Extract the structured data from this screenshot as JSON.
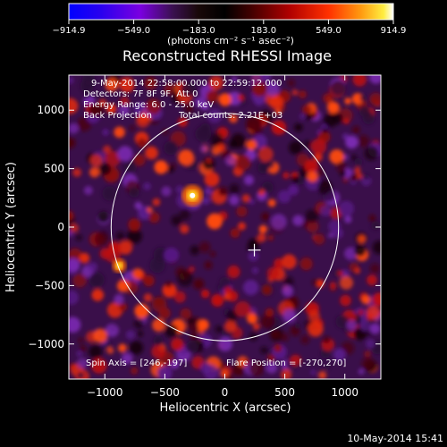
{
  "colorbar": {
    "tick_values": [
      -914.9,
      -549.0,
      -183.0,
      183.0,
      549.0,
      914.9
    ],
    "tick_labels": [
      "−914.9",
      "−549.0",
      "−183.0",
      "183.0",
      "549.0",
      "914.9"
    ],
    "range": [
      -914.9,
      914.9
    ],
    "units_text": "(photons cm⁻² s⁻¹ asec⁻²)"
  },
  "chart_data": {
    "type": "heatmap",
    "title": "Reconstructed RHESSI Image",
    "xlabel": "Heliocentric X (arcsec)",
    "ylabel": "Heliocentric Y (arcsec)",
    "xlim": [
      -1300,
      1300
    ],
    "ylim": [
      -1300,
      1300
    ],
    "xticks": [
      -1000,
      -500,
      0,
      500,
      1000
    ],
    "xtick_labels": [
      "−1000",
      "−500",
      "0",
      "500",
      "1000"
    ],
    "yticks": [
      -1000,
      -500,
      0,
      500,
      1000
    ],
    "ytick_labels": [
      "−1000",
      "−500",
      "0",
      "500",
      "1000"
    ],
    "solar_limb": {
      "center": [
        0,
        0
      ],
      "radius": 960
    },
    "flare_marker": {
      "x": 246,
      "y": -197
    },
    "bright_sources": [
      {
        "x": -270,
        "y": 270,
        "intensity": 914.9
      },
      {
        "x": -880,
        "y": -330,
        "intensity": 500
      }
    ],
    "colormap": "rainbow-black-red-yellow",
    "annotations": {
      "time_range": "9-May-2014 22:58:00.000 to 22:59:12.000",
      "detectors": "Detectors: 7F 8F 9F, Att 0",
      "energy_range": "Energy Range: 6.0 - 25.0 keV",
      "method": "Back Projection",
      "total_counts": "Total counts: 2.21E+03",
      "spin_axis": "Spin Axis = [246,-197]",
      "flare_position": "Flare Position = [-270,270]"
    }
  },
  "footer": {
    "timestamp": "10-May-2014 15:41"
  }
}
